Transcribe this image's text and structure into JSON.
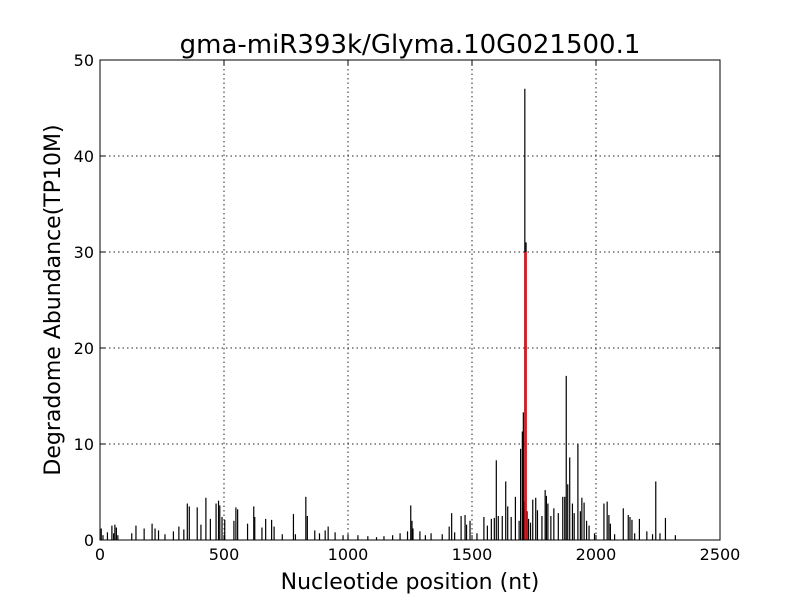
{
  "chart_data": {
    "type": "bar",
    "title": "gma-miR393k/Glyma.10G021500.1",
    "xlabel": "Nucleotide position (nt)",
    "ylabel": "Degradome Abundance(TP10M)",
    "xlim": [
      0,
      2500
    ],
    "ylim": [
      0,
      50
    ],
    "xticks": [
      0,
      500,
      1000,
      1500,
      2000,
      2500
    ],
    "yticks": [
      0,
      10,
      20,
      30,
      40,
      50
    ],
    "grid": true,
    "legend": "none",
    "colors": {
      "bars": "#000000",
      "highlight": "#e8141c",
      "axes": "#000000",
      "background": "#ffffff"
    },
    "highlight": {
      "x": 1716,
      "value": 30
    },
    "series": [
      {
        "x": [
          5,
          12,
          30,
          48,
          55,
          60,
          66,
          72,
          128,
          145,
          178,
          210,
          222,
          236,
          262,
          296,
          318,
          338,
          352,
          360,
          392,
          407,
          427,
          445,
          468,
          478,
          483,
          492,
          503,
          540,
          548,
          555,
          595,
          620,
          624,
          653,
          668,
          692,
          702,
          735,
          780,
          788,
          830,
          836,
          866,
          885,
          908,
          920,
          948,
          980,
          1000,
          1040,
          1080,
          1115,
          1145,
          1180,
          1210,
          1240,
          1253,
          1258,
          1262,
          1290,
          1312,
          1335,
          1380,
          1408,
          1418,
          1430,
          1456,
          1472,
          1478,
          1492,
          1520,
          1548,
          1562,
          1578,
          1590,
          1598,
          1606,
          1622,
          1636,
          1644,
          1658,
          1675,
          1690,
          1696,
          1703,
          1707,
          1710,
          1713,
          1718,
          1722,
          1728,
          1736,
          1745,
          1757,
          1764,
          1782,
          1795,
          1800,
          1806,
          1818,
          1830,
          1848,
          1866,
          1874,
          1880,
          1886,
          1894,
          1905,
          1912,
          1927,
          1937,
          1943,
          1952,
          1962,
          1972,
          1994,
          2032,
          2045,
          2052,
          2058,
          2075,
          2110,
          2130,
          2137,
          2145,
          2156,
          2175,
          2205,
          2228,
          2241,
          2258,
          2280,
          2320
        ],
        "values": [
          1.2,
          0.5,
          0.8,
          1.5,
          0.7,
          1.6,
          1.3,
          0.5,
          0.7,
          1.5,
          1.2,
          1.7,
          1.2,
          1.0,
          0.6,
          0.9,
          1.4,
          1.1,
          3.8,
          3.5,
          3.4,
          1.6,
          4.4,
          2.2,
          3.8,
          4.1,
          3.6,
          2.4,
          2.1,
          2.0,
          3.4,
          3.2,
          1.7,
          3.5,
          2.4,
          1.3,
          2.2,
          2.1,
          1.4,
          0.6,
          2.7,
          0.6,
          4.5,
          2.5,
          1.0,
          0.7,
          1.0,
          1.4,
          0.8,
          0.5,
          0.6,
          0.5,
          0.4,
          0.3,
          0.4,
          0.5,
          0.7,
          0.9,
          3.6,
          2.0,
          1.2,
          0.9,
          0.5,
          0.7,
          0.6,
          1.4,
          2.8,
          0.8,
          2.5,
          2.6,
          1.6,
          2.0,
          0.7,
          2.4,
          1.5,
          2.2,
          2.3,
          8.3,
          2.5,
          2.5,
          6.1,
          3.5,
          2.4,
          4.5,
          2.0,
          9.5,
          11.3,
          13.3,
          4.0,
          47.0,
          31.0,
          3.0,
          2.2,
          1.8,
          4.2,
          4.4,
          3.1,
          2.5,
          5.2,
          4.6,
          3.8,
          2.5,
          3.3,
          2.8,
          4.5,
          4.5,
          17.1,
          5.8,
          8.6,
          3.8,
          2.8,
          10.0,
          3.0,
          4.4,
          3.9,
          2.0,
          1.5,
          0.7,
          3.8,
          4.0,
          2.6,
          1.7,
          0.6,
          3.3,
          2.6,
          2.4,
          2.1,
          0.7,
          2.2,
          0.9,
          0.6,
          6.1,
          0.7,
          2.3,
          0.5
        ]
      }
    ]
  }
}
